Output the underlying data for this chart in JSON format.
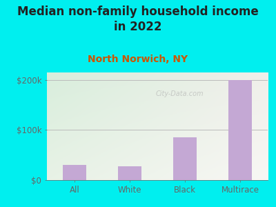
{
  "title": "Median non-family household income\nin 2022",
  "subtitle": "North Norwich, NY",
  "categories": [
    "All",
    "White",
    "Black",
    "Multirace"
  ],
  "values": [
    30000,
    27000,
    85000,
    200000
  ],
  "bar_color": "#c4a8d4",
  "background_color": "#00EFEF",
  "ylim": [
    0,
    215000
  ],
  "yticks": [
    0,
    100000,
    200000
  ],
  "ytick_labels": [
    "$0",
    "$100k",
    "$200k"
  ],
  "title_fontsize": 12,
  "subtitle_fontsize": 10,
  "subtitle_color": "#cc5500",
  "title_color": "#222222",
  "tick_color": "#666666",
  "watermark": "City-Data.com",
  "grid_color": "#bbbbbb",
  "plot_bg_colors": [
    "#d8eedc",
    "#f5f3ee"
  ],
  "bar_width": 0.42
}
